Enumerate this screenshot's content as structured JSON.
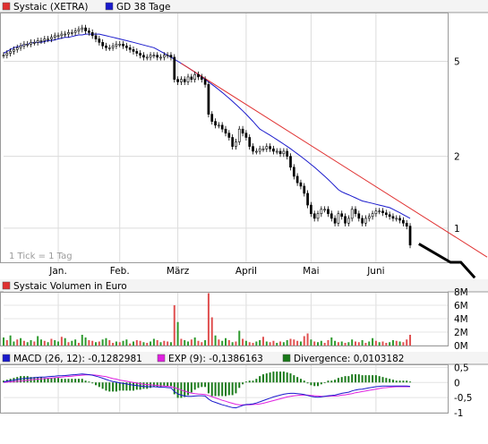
{
  "chart_data": [
    {
      "type": "candlestick",
      "panel": "price",
      "legend": [
        {
          "label": "Systaic (XETRA)",
          "color": "#e03030"
        },
        {
          "label": "GD 38 Tage",
          "color": "#1a1acc"
        }
      ],
      "y_scale": "log",
      "ylim": [
        0.72,
        8.0
      ],
      "y_ticks": [
        {
          "value": 5,
          "label": "5"
        },
        {
          "value": 2,
          "label": "2"
        },
        {
          "value": 1,
          "label": "1"
        }
      ],
      "x_range": [
        0,
        130
      ],
      "x_ticks": [
        {
          "x": 16,
          "label": "Jan."
        },
        {
          "x": 34,
          "label": "Feb."
        },
        {
          "x": 51,
          "label": "März"
        },
        {
          "x": 71,
          "label": "April"
        },
        {
          "x": 90,
          "label": "Mai"
        },
        {
          "x": 109,
          "label": "Juni"
        }
      ],
      "tick_note": "1 Tick = 1 Tag",
      "close": [
        5.3,
        5.4,
        5.5,
        5.6,
        5.7,
        5.8,
        5.9,
        5.9,
        6.0,
        6.0,
        6.1,
        6.1,
        6.2,
        6.2,
        6.3,
        6.4,
        6.4,
        6.5,
        6.5,
        6.6,
        6.6,
        6.7,
        6.8,
        6.9,
        6.7,
        6.6,
        6.4,
        6.2,
        6.0,
        5.8,
        5.7,
        5.7,
        5.8,
        5.9,
        5.9,
        5.8,
        5.7,
        5.6,
        5.5,
        5.4,
        5.3,
        5.2,
        5.2,
        5.3,
        5.3,
        5.2,
        5.2,
        5.3,
        5.3,
        5.2,
        4.2,
        4.1,
        4.2,
        4.1,
        4.3,
        4.2,
        4.4,
        4.3,
        4.2,
        4.0,
        3.0,
        2.8,
        2.7,
        2.7,
        2.6,
        2.5,
        2.4,
        2.2,
        2.3,
        2.6,
        2.5,
        2.4,
        2.2,
        2.1,
        2.1,
        2.15,
        2.15,
        2.2,
        2.15,
        2.1,
        2.1,
        2.05,
        2.1,
        2.0,
        1.8,
        1.65,
        1.55,
        1.5,
        1.4,
        1.25,
        1.15,
        1.1,
        1.15,
        1.2,
        1.2,
        1.15,
        1.1,
        1.05,
        1.15,
        1.12,
        1.05,
        1.1,
        1.2,
        1.15,
        1.1,
        1.05,
        1.1,
        1.12,
        1.15,
        1.18,
        1.18,
        1.16,
        1.14,
        1.12,
        1.1,
        1.1,
        1.08,
        1.05,
        1.02,
        0.85
      ],
      "sma38": [
        5.4,
        5.5,
        5.6,
        5.7,
        5.75,
        5.8,
        5.85,
        5.9,
        5.95,
        6.0,
        6.0,
        6.0,
        6.05,
        6.1,
        6.1,
        6.15,
        6.2,
        6.25,
        6.3,
        6.3,
        6.35,
        6.4,
        6.45,
        6.45,
        6.5,
        6.5,
        6.5,
        6.5,
        6.5,
        6.45,
        6.4,
        6.35,
        6.3,
        6.25,
        6.2,
        6.15,
        6.1,
        6.05,
        6.0,
        5.95,
        5.9,
        5.85,
        5.8,
        5.75,
        5.7,
        5.6,
        5.5,
        5.4,
        5.3,
        5.2,
        5.1,
        5.0,
        4.9,
        4.8,
        4.7,
        4.6,
        4.5,
        4.4,
        4.3,
        4.2,
        4.1,
        4.0,
        3.9,
        3.8,
        3.7,
        3.6,
        3.5,
        3.4,
        3.3,
        3.2,
        3.1,
        3.0,
        2.9,
        2.8,
        2.7,
        2.6,
        2.55,
        2.5,
        2.45,
        2.4,
        2.35,
        2.3,
        2.25,
        2.2,
        2.15,
        2.1,
        2.05,
        2.0,
        1.95,
        1.9,
        1.85,
        1.8,
        1.75,
        1.7,
        1.65,
        1.6,
        1.55,
        1.5,
        1.45,
        1.42,
        1.4,
        1.38,
        1.36,
        1.34,
        1.32,
        1.3,
        1.29,
        1.28,
        1.27,
        1.26,
        1.25,
        1.24,
        1.23,
        1.22,
        1.2,
        1.18,
        1.16,
        1.14,
        1.12,
        1.1
      ],
      "trend_line": {
        "from": [
          52,
          4.9
        ],
        "to": [
          130,
          0.9
        ],
        "color": "#e03030"
      },
      "forecast": [
        [
          120,
          0.86
        ],
        [
          124,
          0.72
        ],
        [
          126,
          0.72
        ],
        [
          129,
          0.62
        ]
      ]
    },
    {
      "type": "bar",
      "panel": "volume",
      "legend": [
        {
          "label": "Systaic Volumen in Euro",
          "color": "#e03030"
        }
      ],
      "ylim": [
        0,
        8
      ],
      "y_ticks": [
        {
          "value": 8,
          "label": "8M"
        },
        {
          "value": 6,
          "label": "6M"
        },
        {
          "value": 4,
          "label": "4M"
        },
        {
          "value": 2,
          "label": "2M"
        },
        {
          "value": 0,
          "label": "0M"
        }
      ],
      "values": [
        1.2,
        0.8,
        1.5,
        0.6,
        0.9,
        1.1,
        0.7,
        0.5,
        0.8,
        0.6,
        1.4,
        0.9,
        0.7,
        0.5,
        1.0,
        0.8,
        0.6,
        1.3,
        1.1,
        0.5,
        0.7,
        0.9,
        0.4,
        1.6,
        1.2,
        0.8,
        0.7,
        0.5,
        0.6,
        0.9,
        1.1,
        0.8,
        0.4,
        0.6,
        0.5,
        0.7,
        0.9,
        0.3,
        0.6,
        0.8,
        0.7,
        0.5,
        0.4,
        0.6,
        1.0,
        0.8,
        0.5,
        0.7,
        0.6,
        0.5,
        6.0,
        3.5,
        1.0,
        0.8,
        0.6,
        0.9,
        1.2,
        0.7,
        0.5,
        0.8,
        7.8,
        4.2,
        1.5,
        0.9,
        0.7,
        1.1,
        0.8,
        0.5,
        0.6,
        2.2,
        1.0,
        0.7,
        0.5,
        0.4,
        0.6,
        0.8,
        1.3,
        0.6,
        0.5,
        0.7,
        0.4,
        0.6,
        0.5,
        0.8,
        1.0,
        0.9,
        0.7,
        0.6,
        1.4,
        1.8,
        0.9,
        0.6,
        0.5,
        0.7,
        0.4,
        0.8,
        1.2,
        0.7,
        0.5,
        0.6,
        0.4,
        0.5,
        0.9,
        0.6,
        0.5,
        0.8,
        0.4,
        0.6,
        1.1,
        0.7,
        0.5,
        0.6,
        0.4,
        0.5,
        0.8,
        0.7,
        0.6,
        0.5,
        0.9,
        1.6
      ],
      "up": [
        1,
        0,
        1,
        1,
        0,
        1,
        0,
        1,
        1,
        0,
        1,
        1,
        0,
        1,
        0,
        1,
        1,
        0,
        1,
        0,
        1,
        1,
        0,
        1,
        1,
        0,
        0,
        1,
        0,
        1,
        1,
        0,
        0,
        1,
        0,
        1,
        1,
        0,
        1,
        0,
        0,
        1,
        0,
        1,
        1,
        0,
        1,
        0,
        0,
        1,
        0,
        1,
        0,
        1,
        1,
        0,
        1,
        0,
        0,
        1,
        0,
        0,
        1,
        0,
        1,
        1,
        0,
        1,
        0,
        1,
        0,
        1,
        0,
        0,
        1,
        1,
        0,
        1,
        0,
        0,
        1,
        0,
        1,
        1,
        0,
        0,
        0,
        1,
        0,
        0,
        1,
        0,
        1,
        1,
        0,
        0,
        1,
        1,
        0,
        1,
        0,
        1,
        1,
        0,
        0,
        1,
        0,
        1,
        1,
        0,
        1,
        0,
        0,
        1,
        1,
        0,
        1,
        0,
        0,
        0
      ]
    },
    {
      "type": "line",
      "panel": "macd",
      "legend": [
        {
          "label": "MACD (26, 12): -0,1282981",
          "color": "#1a1acc"
        },
        {
          "label": "EXP (9): -0,1386163",
          "color": "#e020e0"
        },
        {
          "label": "Divergence: 0,0103182",
          "color": "#1a7a1a"
        }
      ],
      "ylim": [
        -1.0,
        0.6
      ],
      "y_ticks": [
        {
          "value": 0.5,
          "label": "0,5"
        },
        {
          "value": 0,
          "label": "0"
        },
        {
          "value": -0.5,
          "label": "-0,5"
        },
        {
          "value": -1,
          "label": "-1"
        }
      ],
      "macd": [
        0.02,
        0.04,
        0.06,
        0.08,
        0.1,
        0.12,
        0.13,
        0.14,
        0.15,
        0.16,
        0.17,
        0.18,
        0.18,
        0.19,
        0.2,
        0.21,
        0.22,
        0.22,
        0.23,
        0.24,
        0.25,
        0.26,
        0.27,
        0.28,
        0.27,
        0.26,
        0.24,
        0.21,
        0.18,
        0.14,
        0.1,
        0.06,
        0.03,
        0.01,
        -0.01,
        -0.03,
        -0.05,
        -0.07,
        -0.09,
        -0.1,
        -0.12,
        -0.13,
        -0.14,
        -0.14,
        -0.14,
        -0.15,
        -0.16,
        -0.16,
        -0.17,
        -0.18,
        -0.3,
        -0.38,
        -0.42,
        -0.45,
        -0.46,
        -0.46,
        -0.45,
        -0.44,
        -0.44,
        -0.45,
        -0.55,
        -0.62,
        -0.66,
        -0.7,
        -0.74,
        -0.77,
        -0.8,
        -0.83,
        -0.84,
        -0.8,
        -0.76,
        -0.73,
        -0.72,
        -0.71,
        -0.68,
        -0.64,
        -0.6,
        -0.56,
        -0.52,
        -0.48,
        -0.45,
        -0.42,
        -0.39,
        -0.37,
        -0.36,
        -0.36,
        -0.37,
        -0.38,
        -0.4,
        -0.43,
        -0.46,
        -0.48,
        -0.49,
        -0.48,
        -0.46,
        -0.44,
        -0.43,
        -0.42,
        -0.39,
        -0.36,
        -0.34,
        -0.32,
        -0.28,
        -0.25,
        -0.23,
        -0.22,
        -0.2,
        -0.18,
        -0.16,
        -0.14,
        -0.13,
        -0.12,
        -0.12,
        -0.12,
        -0.12,
        -0.12,
        -0.12,
        -0.12,
        -0.12,
        -0.13
      ],
      "signal": [
        0.0,
        0.01,
        0.02,
        0.03,
        0.04,
        0.05,
        0.06,
        0.07,
        0.09,
        0.1,
        0.11,
        0.12,
        0.13,
        0.14,
        0.15,
        0.16,
        0.17,
        0.18,
        0.19,
        0.2,
        0.21,
        0.22,
        0.23,
        0.24,
        0.25,
        0.25,
        0.25,
        0.24,
        0.23,
        0.21,
        0.19,
        0.16,
        0.13,
        0.11,
        0.08,
        0.06,
        0.04,
        0.02,
        0.0,
        -0.02,
        -0.04,
        -0.06,
        -0.07,
        -0.08,
        -0.09,
        -0.1,
        -0.11,
        -0.12,
        -0.13,
        -0.14,
        -0.17,
        -0.21,
        -0.25,
        -0.29,
        -0.32,
        -0.35,
        -0.37,
        -0.38,
        -0.39,
        -0.4,
        -0.43,
        -0.47,
        -0.51,
        -0.55,
        -0.59,
        -0.62,
        -0.66,
        -0.69,
        -0.72,
        -0.74,
        -0.74,
        -0.74,
        -0.74,
        -0.73,
        -0.72,
        -0.71,
        -0.69,
        -0.66,
        -0.63,
        -0.6,
        -0.57,
        -0.54,
        -0.51,
        -0.48,
        -0.46,
        -0.44,
        -0.43,
        -0.42,
        -0.42,
        -0.42,
        -0.43,
        -0.44,
        -0.45,
        -0.46,
        -0.46,
        -0.46,
        -0.45,
        -0.45,
        -0.44,
        -0.42,
        -0.41,
        -0.39,
        -0.37,
        -0.34,
        -0.32,
        -0.3,
        -0.28,
        -0.26,
        -0.24,
        -0.22,
        -0.2,
        -0.18,
        -0.17,
        -0.16,
        -0.15,
        -0.14,
        -0.14,
        -0.14,
        -0.14,
        -0.14
      ]
    }
  ]
}
